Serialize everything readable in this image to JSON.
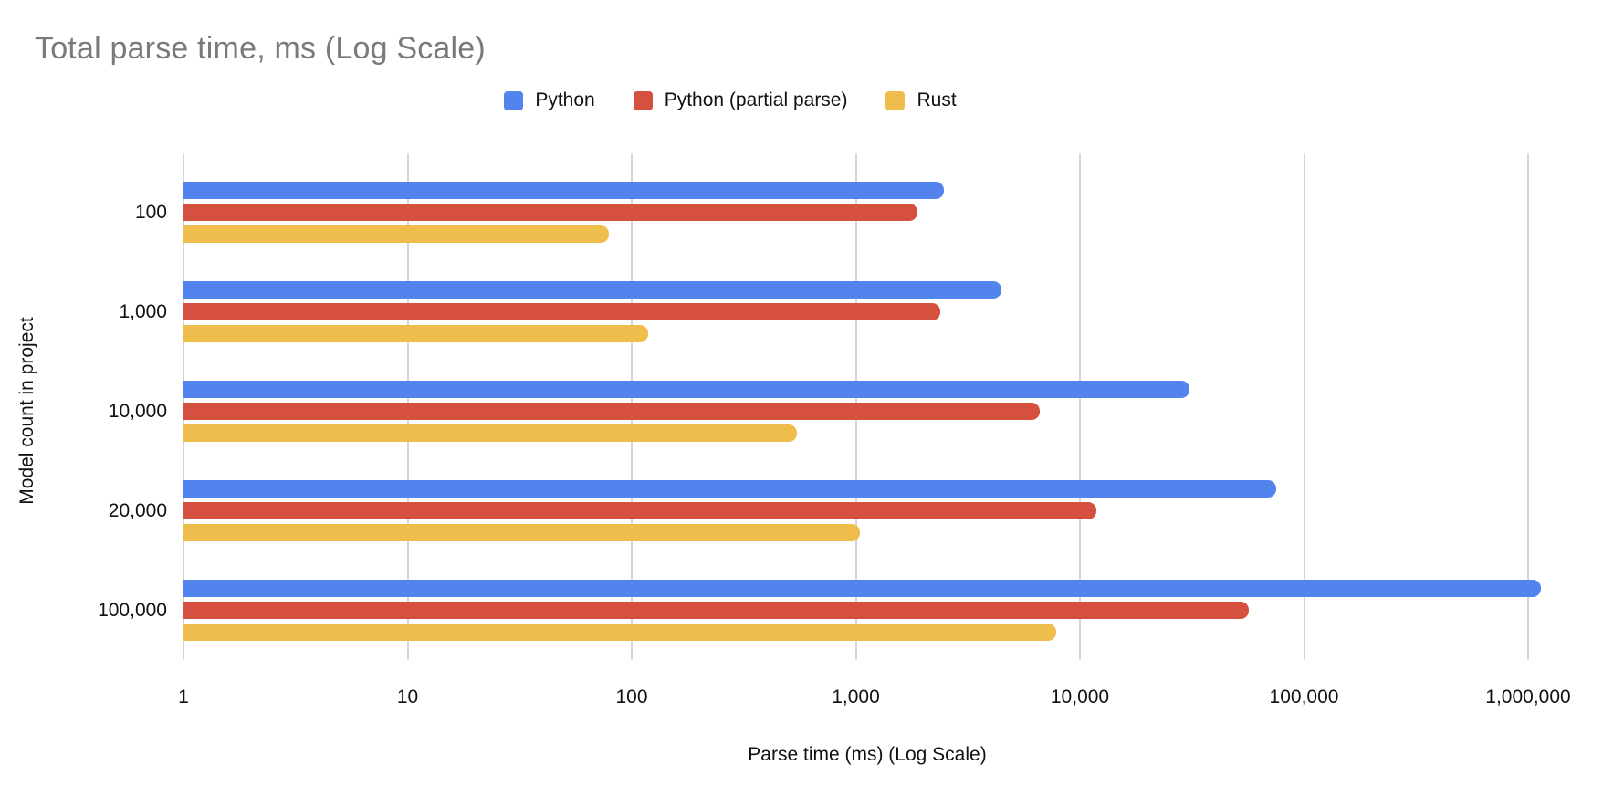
{
  "title": "Total parse time, ms (Log Scale)",
  "colors": {
    "title_text": "#7a7a7a",
    "axis_text": "#111111",
    "gridline": "#d5d5d5",
    "background": "#ffffff"
  },
  "chart_data": {
    "type": "bar",
    "orientation": "horizontal",
    "x_scale": "log",
    "title": "Total parse time, ms (Log Scale)",
    "xlabel": "Parse time (ms) (Log Scale)",
    "ylabel": "Model count in project",
    "categories": [
      "100",
      "1,000",
      "10,000",
      "20,000",
      "100,000"
    ],
    "series": [
      {
        "name": "Python",
        "color": "#5383EC",
        "values": [
          2500,
          4500,
          31000,
          76000,
          1150000
        ]
      },
      {
        "name": "Python (partial parse)",
        "color": "#D5503E",
        "values": [
          1900,
          2400,
          6700,
          12000,
          57000
        ]
      },
      {
        "name": "Rust",
        "color": "#EFBD4B",
        "values": [
          80,
          120,
          550,
          1050,
          7900
        ]
      }
    ],
    "x_tick_labels": [
      "1",
      "10",
      "100",
      "1,000",
      "10,000",
      "100,000",
      "1,000,000"
    ],
    "x_tick_values": [
      1,
      10,
      100,
      1000,
      10000,
      100000,
      1000000
    ],
    "xlim": [
      1,
      1300000
    ],
    "grid": true,
    "legend_position": "top",
    "units": "ms"
  }
}
